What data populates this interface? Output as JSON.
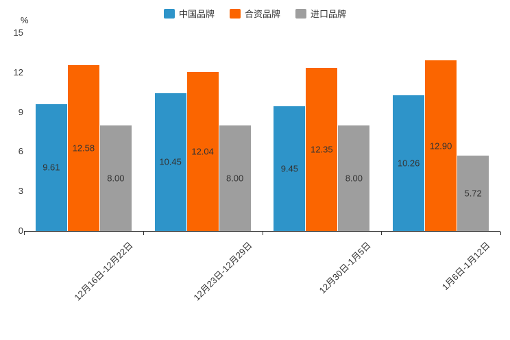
{
  "chart_data": {
    "type": "bar",
    "title": "",
    "ylabel": "%",
    "xlabel": "",
    "ylim": [
      0,
      15
    ],
    "yticks": [
      0,
      3,
      6,
      9,
      12,
      15
    ],
    "grid": false,
    "legend_position": "top-center",
    "categories": [
      "12月16日-12月22日",
      "12月23日-12月29日",
      "12月30日-1月5日",
      "1月6日-1月12日"
    ],
    "series": [
      {
        "name": "中国品牌",
        "color": "#2E94C9",
        "values": [
          9.61,
          10.45,
          9.45,
          10.26
        ]
      },
      {
        "name": "合资品牌",
        "color": "#FB6500",
        "values": [
          12.58,
          12.04,
          12.35,
          12.9
        ]
      },
      {
        "name": "进口品牌",
        "color": "#9E9E9E",
        "values": [
          8.0,
          8.0,
          8.0,
          5.72
        ]
      }
    ],
    "value_label_format": "0.00",
    "value_label_color": "#333333",
    "axis_color": "#333333"
  }
}
